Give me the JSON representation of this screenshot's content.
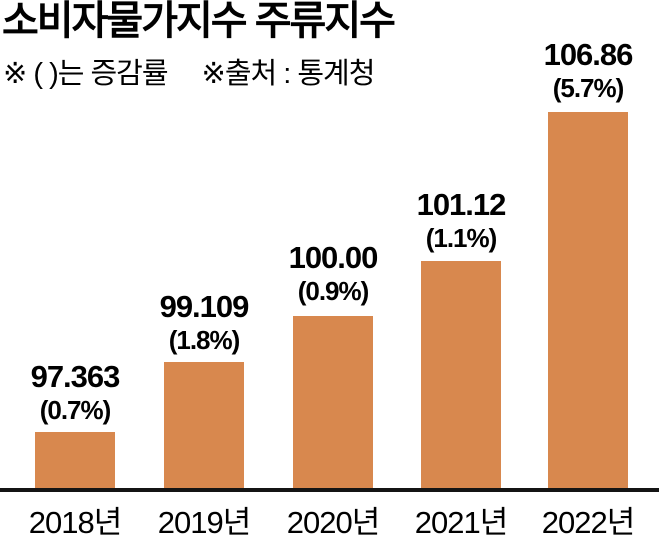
{
  "header": {
    "title": "소비자물가지수 주류지수",
    "note": "※ ( )는 증감률",
    "source": "※출처 : 통계청"
  },
  "colors": {
    "bar": "#d8884e",
    "axis": "#141414",
    "text": "#000000"
  },
  "bars": [
    {
      "year": "2018년",
      "value_label": "97.363",
      "pct_label": "(0.7%)"
    },
    {
      "year": "2019년",
      "value_label": "99.109",
      "pct_label": "(1.8%)"
    },
    {
      "year": "2020년",
      "value_label": "100.00",
      "pct_label": "(0.9%)"
    },
    {
      "year": "2021년",
      "value_label": "101.12",
      "pct_label": "(1.1%)"
    },
    {
      "year": "2022년",
      "value_label": "106.86",
      "pct_label": "(5.7%)"
    }
  ],
  "chart_data": {
    "type": "bar",
    "title": "소비자물가지수 주류지수",
    "categories": [
      "2018년",
      "2019년",
      "2020년",
      "2021년",
      "2022년"
    ],
    "values": [
      97.363,
      99.109,
      100.0,
      101.12,
      106.86
    ],
    "change_pct": [
      0.7,
      1.8,
      0.9,
      1.1,
      5.7
    ],
    "note": "※ ( )는 증감률",
    "source": "통계청",
    "bar_color": "#d8884e",
    "grid": false,
    "legend": false,
    "value_labels_shown": true,
    "xlabel": "",
    "ylabel": ""
  }
}
